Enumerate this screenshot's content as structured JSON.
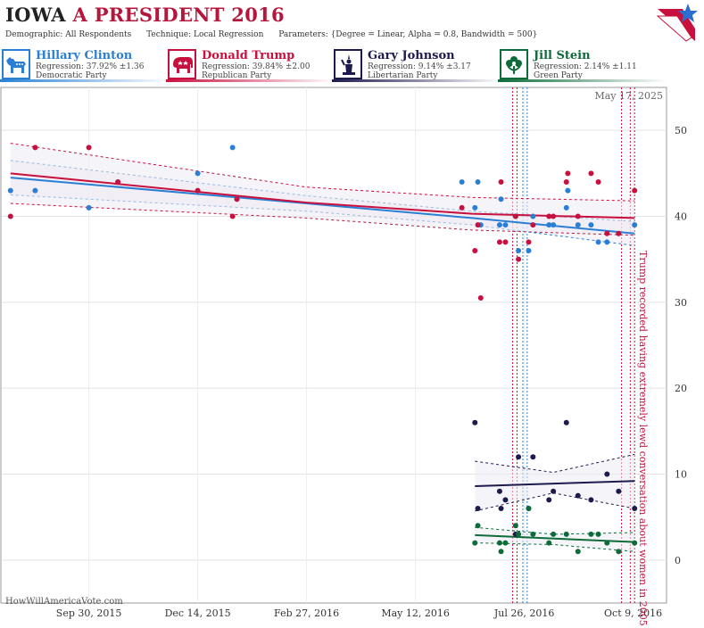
{
  "title": {
    "state": "IOWA",
    "race": "A PRESIDENT 2016"
  },
  "params": {
    "demographic": "Demographic: All Respondents",
    "technique": "Technique: Local Regression",
    "parameters": "Parameters: {Degree = Linear, Alpha = 0.8, Bandwidth = 500}"
  },
  "candidates": [
    {
      "name": "Hillary Clinton",
      "regression": "Regression: 37.92% ±1.36",
      "party": "Democratic Party",
      "color": "#2a7fd4",
      "icon": "donkey-icon"
    },
    {
      "name": "Donald Trump",
      "regression": "Regression: 39.84% ±2.00",
      "party": "Republican Party",
      "color": "#c8103e",
      "icon": "elephant-icon"
    },
    {
      "name": "Gary Johnson",
      "regression": "Regression: 9.14% ±3.17",
      "party": "Libertarian Party",
      "color": "#1d1a4e",
      "icon": "liberty-statue-icon"
    },
    {
      "name": "Jill Stein",
      "regression": "Regression: 2.14% ±1.11",
      "party": "Green Party",
      "color": "#0e6b3a",
      "icon": "flower-icon"
    }
  ],
  "date_label": "May 17, 2025",
  "watermark": "HowWillAmericaVote.com",
  "annotation": "Trump recorded having extremely lewd conversation about women in 2005",
  "chart_data": {
    "type": "scatter",
    "x_ticks": [
      "Sep 30, 2015",
      "Dec 14, 2015",
      "Feb 27, 2016",
      "May 12, 2016",
      "Jul 26, 2016",
      "Oct 9, 2016"
    ],
    "x_range": [
      "2015-08-01",
      "2016-11-01"
    ],
    "y_ticks": [
      0,
      10,
      20,
      30,
      40,
      50
    ],
    "ylim": [
      -5,
      55
    ],
    "vlines": [
      {
        "date": "2016-07-18",
        "color": "#c8103e"
      },
      {
        "date": "2016-07-21",
        "color": "#c8103e"
      },
      {
        "date": "2016-07-25",
        "color": "#2a7fd4"
      },
      {
        "date": "2016-07-28",
        "color": "#2a7fd4"
      },
      {
        "date": "2016-10-01",
        "color": "#c8103e"
      },
      {
        "date": "2016-10-07",
        "color": "#c8103e"
      },
      {
        "date": "2016-10-10",
        "color": "#c8103e"
      }
    ],
    "series": [
      {
        "name": "Hillary Clinton",
        "color": "#2a7fd4",
        "points": [
          [
            "2015-08-07",
            43
          ],
          [
            "2015-08-24",
            43
          ],
          [
            "2015-09-30",
            41
          ],
          [
            "2015-10-20",
            44
          ],
          [
            "2015-12-14",
            45
          ],
          [
            "2016-01-07",
            48
          ],
          [
            "2016-01-10",
            42
          ],
          [
            "2016-06-13",
            44
          ],
          [
            "2016-06-22",
            41
          ],
          [
            "2016-06-24",
            44
          ],
          [
            "2016-06-26",
            39
          ],
          [
            "2016-07-09",
            39
          ],
          [
            "2016-07-10",
            42
          ],
          [
            "2016-07-13",
            39
          ],
          [
            "2016-07-20",
            40
          ],
          [
            "2016-07-22",
            36
          ],
          [
            "2016-07-29",
            36
          ],
          [
            "2016-08-01",
            40
          ],
          [
            "2016-08-12",
            39
          ],
          [
            "2016-08-15",
            39
          ],
          [
            "2016-08-24",
            41
          ],
          [
            "2016-08-25",
            43
          ],
          [
            "2016-09-01",
            39
          ],
          [
            "2016-09-10",
            39
          ],
          [
            "2016-09-15",
            37
          ],
          [
            "2016-09-21",
            37
          ],
          [
            "2016-09-29",
            38
          ],
          [
            "2016-10-10",
            39
          ]
        ],
        "fit": [
          [
            "2015-08-07",
            44.5
          ],
          [
            "2016-02-27",
            41.5
          ],
          [
            "2016-06-20",
            39.8
          ],
          [
            "2016-10-10",
            38.0
          ]
        ],
        "band": [
          [
            "2015-08-07",
            46.5,
            42.5
          ],
          [
            "2016-02-27",
            42.4,
            40.6
          ],
          [
            "2016-06-20",
            40.6,
            39.0
          ],
          [
            "2016-10-10",
            39.4,
            36.6
          ]
        ]
      },
      {
        "name": "Donald Trump",
        "color": "#c8103e",
        "points": [
          [
            "2015-08-07",
            40
          ],
          [
            "2015-08-24",
            48
          ],
          [
            "2015-09-30",
            48
          ],
          [
            "2015-10-20",
            44
          ],
          [
            "2015-12-14",
            43
          ],
          [
            "2016-01-07",
            40
          ],
          [
            "2016-01-10",
            42
          ],
          [
            "2016-06-13",
            41
          ],
          [
            "2016-06-22",
            36
          ],
          [
            "2016-06-24",
            39
          ],
          [
            "2016-06-26",
            30.5
          ],
          [
            "2016-07-09",
            37
          ],
          [
            "2016-07-10",
            44
          ],
          [
            "2016-07-13",
            37
          ],
          [
            "2016-07-20",
            40
          ],
          [
            "2016-07-22",
            35
          ],
          [
            "2016-07-29",
            37
          ],
          [
            "2016-08-01",
            39
          ],
          [
            "2016-08-12",
            40
          ],
          [
            "2016-08-15",
            40
          ],
          [
            "2016-08-24",
            44
          ],
          [
            "2016-08-25",
            45
          ],
          [
            "2016-09-01",
            40
          ],
          [
            "2016-09-10",
            45
          ],
          [
            "2016-09-15",
            44
          ],
          [
            "2016-09-21",
            38
          ],
          [
            "2016-09-29",
            38
          ],
          [
            "2016-10-10",
            43
          ]
        ],
        "fit": [
          [
            "2015-08-07",
            45.0
          ],
          [
            "2016-02-27",
            41.6
          ],
          [
            "2016-06-20",
            40.3
          ],
          [
            "2016-10-10",
            39.8
          ]
        ],
        "band": [
          [
            "2015-08-07",
            48.5,
            41.5
          ],
          [
            "2016-02-27",
            43.4,
            39.8
          ],
          [
            "2016-06-20",
            42.2,
            38.4
          ],
          [
            "2016-10-10",
            41.8,
            37.8
          ]
        ]
      },
      {
        "name": "Gary Johnson",
        "color": "#1d1a4e",
        "points": [
          [
            "2016-06-22",
            16
          ],
          [
            "2016-06-24",
            6
          ],
          [
            "2016-07-09",
            8
          ],
          [
            "2016-07-10",
            6
          ],
          [
            "2016-07-13",
            7
          ],
          [
            "2016-07-20",
            3
          ],
          [
            "2016-07-22",
            12
          ],
          [
            "2016-07-29",
            6
          ],
          [
            "2016-08-01",
            12
          ],
          [
            "2016-08-12",
            7
          ],
          [
            "2016-08-15",
            8
          ],
          [
            "2016-08-24",
            16
          ],
          [
            "2016-09-01",
            7.5
          ],
          [
            "2016-09-10",
            7
          ],
          [
            "2016-09-21",
            10
          ],
          [
            "2016-09-29",
            8
          ],
          [
            "2016-10-10",
            6
          ]
        ],
        "fit": [
          [
            "2016-06-22",
            8.6
          ],
          [
            "2016-10-10",
            9.2
          ]
        ],
        "band": [
          [
            "2016-06-22",
            11.5,
            5.7
          ],
          [
            "2016-08-15",
            10.2,
            7.8
          ],
          [
            "2016-10-10",
            12.3,
            6.0
          ]
        ]
      },
      {
        "name": "Jill Stein",
        "color": "#0e6b3a",
        "points": [
          [
            "2016-06-22",
            2
          ],
          [
            "2016-06-24",
            4
          ],
          [
            "2016-07-09",
            2
          ],
          [
            "2016-07-10",
            1
          ],
          [
            "2016-07-13",
            2
          ],
          [
            "2016-07-20",
            4
          ],
          [
            "2016-07-22",
            3
          ],
          [
            "2016-07-29",
            6
          ],
          [
            "2016-08-01",
            3
          ],
          [
            "2016-08-12",
            2
          ],
          [
            "2016-08-15",
            3
          ],
          [
            "2016-08-24",
            3
          ],
          [
            "2016-09-01",
            1
          ],
          [
            "2016-09-10",
            3
          ],
          [
            "2016-09-15",
            3
          ],
          [
            "2016-09-21",
            2
          ],
          [
            "2016-09-29",
            1
          ],
          [
            "2016-10-10",
            2
          ]
        ],
        "fit": [
          [
            "2016-06-22",
            2.9
          ],
          [
            "2016-10-10",
            2.1
          ]
        ],
        "band": [
          [
            "2016-06-22",
            3.8,
            2.0
          ],
          [
            "2016-08-15",
            3.0,
            1.8
          ],
          [
            "2016-10-10",
            3.2,
            1.0
          ]
        ]
      }
    ]
  }
}
